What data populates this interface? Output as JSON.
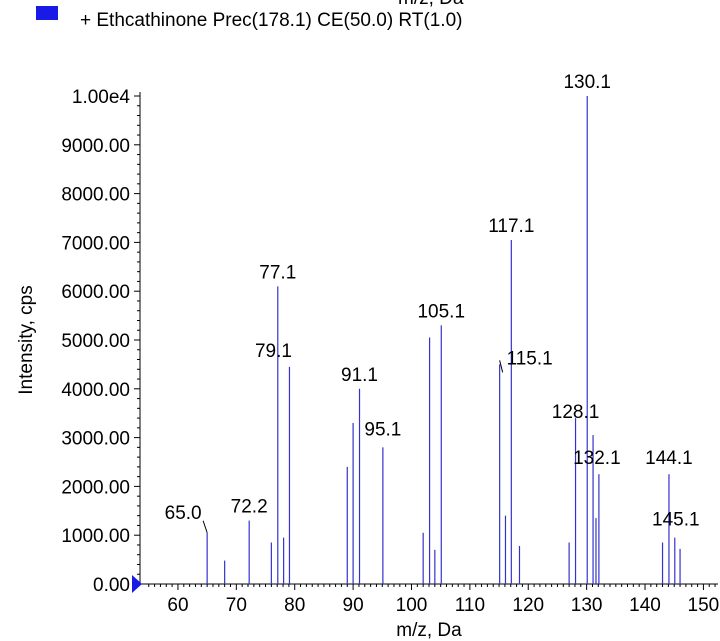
{
  "header": {
    "top_clipped_text": "m/z, Da"
  },
  "legend": {
    "swatch_color": "#1a1ae6",
    "label": "+ Ethcathinone Prec(178.1) CE(50.0) RT(1.0)"
  },
  "chart_data": {
    "type": "bar",
    "xlabel": "m/z, Da",
    "ylabel": "Intensity, cps",
    "xlim": [
      53.5,
      152.5
    ],
    "ylim": [
      0,
      10000
    ],
    "xticks": [
      60,
      70,
      80,
      90,
      100,
      110,
      120,
      130,
      140,
      150
    ],
    "xtick_labels": [
      "60",
      "70",
      "80",
      "90",
      "100",
      "110",
      "120",
      "130",
      "140",
      "150"
    ],
    "yticks": [
      0,
      1000,
      2000,
      3000,
      4000,
      5000,
      6000,
      7000,
      8000,
      9000,
      10000
    ],
    "ytick_labels": [
      "0.00",
      "1000.00",
      "2000.00",
      "3000.00",
      "4000.00",
      "5000.00",
      "6000.00",
      "7000.00",
      "8000.00",
      "9000.00",
      "1.00e4"
    ],
    "bar_color": "#3333cc",
    "peaks": [
      {
        "mz": 65.0,
        "intensity": 1050
      },
      {
        "mz": 68.0,
        "intensity": 480
      },
      {
        "mz": 72.2,
        "intensity": 1300
      },
      {
        "mz": 76.0,
        "intensity": 850
      },
      {
        "mz": 77.1,
        "intensity": 6100
      },
      {
        "mz": 78.1,
        "intensity": 950
      },
      {
        "mz": 79.1,
        "intensity": 4450
      },
      {
        "mz": 89.0,
        "intensity": 2400
      },
      {
        "mz": 90.0,
        "intensity": 3300
      },
      {
        "mz": 91.1,
        "intensity": 4000
      },
      {
        "mz": 95.1,
        "intensity": 2800
      },
      {
        "mz": 102.0,
        "intensity": 1050
      },
      {
        "mz": 103.1,
        "intensity": 5050
      },
      {
        "mz": 104.0,
        "intensity": 700
      },
      {
        "mz": 105.1,
        "intensity": 5300
      },
      {
        "mz": 115.1,
        "intensity": 4500
      },
      {
        "mz": 116.1,
        "intensity": 1400
      },
      {
        "mz": 117.1,
        "intensity": 7050
      },
      {
        "mz": 118.5,
        "intensity": 780
      },
      {
        "mz": 127.0,
        "intensity": 850
      },
      {
        "mz": 128.1,
        "intensity": 3400
      },
      {
        "mz": 130.1,
        "intensity": 10000
      },
      {
        "mz": 131.1,
        "intensity": 3050
      },
      {
        "mz": 131.6,
        "intensity": 1350
      },
      {
        "mz": 132.1,
        "intensity": 2250
      },
      {
        "mz": 143.0,
        "intensity": 850
      },
      {
        "mz": 144.1,
        "intensity": 2250
      },
      {
        "mz": 145.1,
        "intensity": 950
      },
      {
        "mz": 146.0,
        "intensity": 720
      }
    ],
    "annotations": [
      {
        "text": "65.0",
        "mz": 65.0
      },
      {
        "text": "72.2",
        "mz": 72.2
      },
      {
        "text": "77.1",
        "mz": 77.1
      },
      {
        "text": "79.1",
        "mz": 79.1
      },
      {
        "text": "91.1",
        "mz": 91.1
      },
      {
        "text": "95.1",
        "mz": 95.1
      },
      {
        "text": "105.1",
        "mz": 105.1
      },
      {
        "text": "115.1",
        "mz": 115.1
      },
      {
        "text": "117.1",
        "mz": 117.1
      },
      {
        "text": "128.1",
        "mz": 128.1
      },
      {
        "text": "130.1",
        "mz": 130.1
      },
      {
        "text": "132.1",
        "mz": 132.1
      },
      {
        "text": "144.1",
        "mz": 144.1
      },
      {
        "text": "145.1",
        "mz": 145.1
      }
    ]
  }
}
